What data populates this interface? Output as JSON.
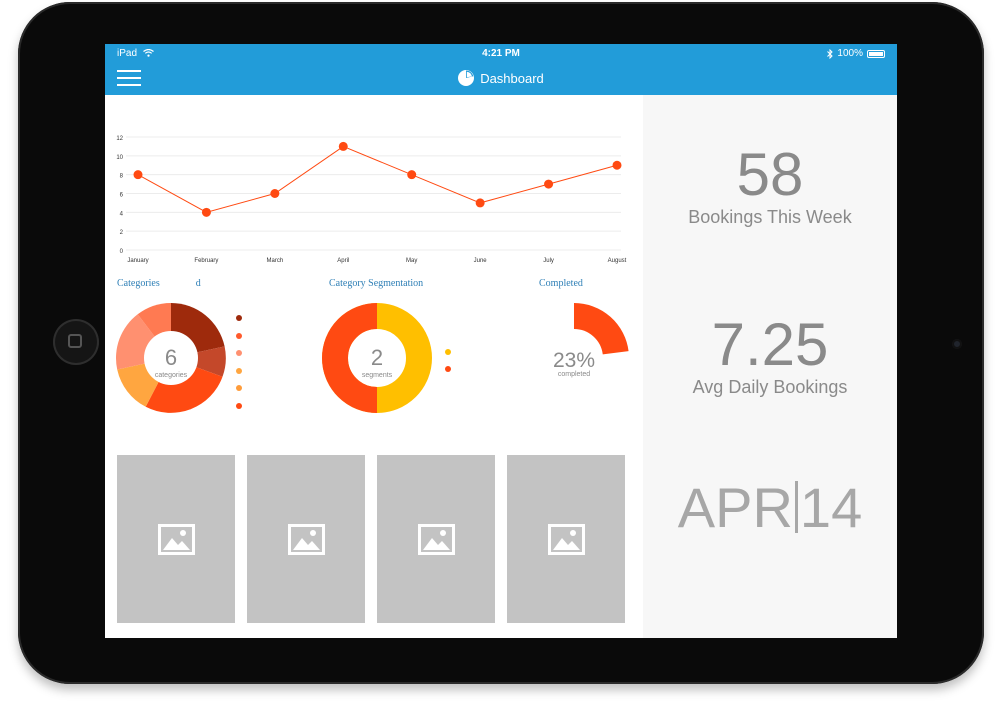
{
  "status_bar": {
    "carrier": "iPad",
    "time": "4:21 PM",
    "battery": "100%"
  },
  "nav": {
    "title": "Dashboard"
  },
  "line_chart": {
    "chart_data": {
      "type": "line",
      "categories": [
        "January",
        "February",
        "March",
        "April",
        "May",
        "June",
        "July",
        "August"
      ],
      "values": [
        8,
        4,
        6,
        11,
        8,
        5,
        7,
        9
      ],
      "ylim": [
        0,
        12
      ],
      "yticks": [
        "12",
        "10",
        "8",
        "6",
        "4",
        "2",
        "0"
      ],
      "grid": true,
      "color": "#ff4a12"
    }
  },
  "donuts": {
    "categories": {
      "title": "Categories",
      "title_suffix": "d",
      "value": "6",
      "caption": "categories",
      "legend_colors": [
        "#9e2a0c",
        "#ff5a2c",
        "#ff9070",
        "#ffa640",
        "#ff9c3a",
        "#ff4a12"
      ]
    },
    "segmentation": {
      "title": "Category Segmentation",
      "value": "2",
      "caption": "segments",
      "legend_colors": [
        "#ffbf00",
        "#ff4a12"
      ]
    },
    "completed": {
      "title": "Completed",
      "value": "23%",
      "caption": "completed",
      "fraction": 0.23
    }
  },
  "stats": {
    "bookings_week": {
      "value": "58",
      "label": "Bookings This Week"
    },
    "avg_daily": {
      "value": "7.25",
      "label": "Avg Daily Bookings"
    },
    "date": {
      "month": "APR",
      "day": "14"
    }
  },
  "colors": {
    "accent": "#229cd9",
    "chart_line": "#ff4a12"
  }
}
